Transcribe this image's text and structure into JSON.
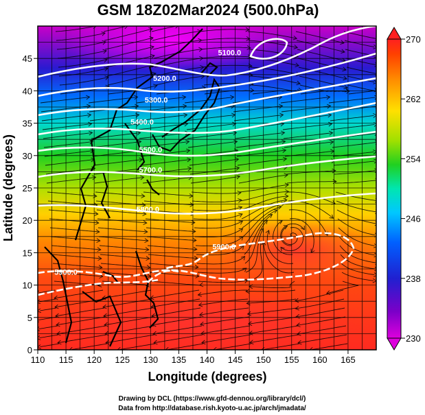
{
  "title": "GSM 18Z02Mar2024 (500.0hPa)",
  "xlabel": "Longitude (degrees)",
  "ylabel": "Latitude  (degrees)",
  "credit_line1": "Drawing by DCL (https://www.gfd-dennou.org/library/dcl/)",
  "credit_line2": "Data from http://database.rish.kyoto-u.ac.jp/arch/jmadata/",
  "chart_data": {
    "type": "heatmap",
    "xlim": [
      110,
      170
    ],
    "ylim": [
      0,
      50
    ],
    "x_ticks": [
      "110",
      "115",
      "120",
      "125",
      "130",
      "135",
      "140",
      "145",
      "150",
      "155",
      "160",
      "165"
    ],
    "y_ticks": [
      "0",
      "5",
      "10",
      "15",
      "20",
      "25",
      "30",
      "35",
      "40",
      "45"
    ],
    "grid": true,
    "colorbar": {
      "min": 230,
      "max": 270,
      "ticks": [
        "230",
        "238",
        "246",
        "254",
        "262",
        "270"
      ],
      "colors": [
        "#dd00dd",
        "#7a00c8",
        "#2020d0",
        "#0060ff",
        "#00c8ff",
        "#00e6b0",
        "#20d020",
        "#a0e000",
        "#ffe000",
        "#ff9000",
        "#ff4000",
        "#ff2020"
      ]
    },
    "contours": [
      {
        "label": "5100.0",
        "lon": 144,
        "lat": 45.5
      },
      {
        "label": "5200.0",
        "lon": 132.5,
        "lat": 41.5
      },
      {
        "label": "5300.0",
        "lon": 131,
        "lat": 38.2
      },
      {
        "label": "5400.0",
        "lon": 128.5,
        "lat": 34.8
      },
      {
        "label": "5500.0",
        "lon": 130,
        "lat": 30.5
      },
      {
        "label": "5700.0",
        "lon": 130,
        "lat": 27.4
      },
      {
        "label": "5800.0",
        "lon": 129.5,
        "lat": 21.3
      },
      {
        "label": "5900.0",
        "lon": 143,
        "lat": 15.5
      },
      {
        "label": "5900.0",
        "lon": 115,
        "lat": 11.6
      }
    ]
  }
}
